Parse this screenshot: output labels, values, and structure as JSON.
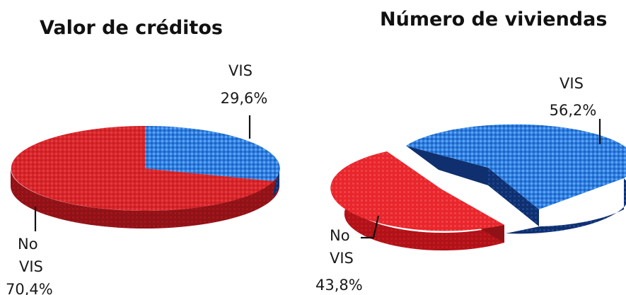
{
  "colors": {
    "no_vis_top": "#d8262b",
    "no_vis_side": "#8f1217",
    "vis_top": "#2f7fe0",
    "vis_side": "#0f2f6e",
    "text": "#111111"
  },
  "chart_data": [
    {
      "type": "pie",
      "style": "3d",
      "title": "Valor de créditos",
      "slices": [
        {
          "label_line1": "VIS",
          "label_line2": "",
          "value_text": "29,6%",
          "value": 29.6
        },
        {
          "label_line1": "No",
          "label_line2": "VIS",
          "value_text": "70,4%",
          "value": 70.4
        }
      ]
    },
    {
      "type": "pie",
      "style": "3d-exploded",
      "title": "Número de viviendas",
      "slices": [
        {
          "label_line1": "VIS",
          "label_line2": "",
          "value_text": "56,2%",
          "value": 56.2
        },
        {
          "label_line1": "No",
          "label_line2": "VIS",
          "value_text": "43,8%",
          "value": 43.8
        }
      ]
    }
  ]
}
